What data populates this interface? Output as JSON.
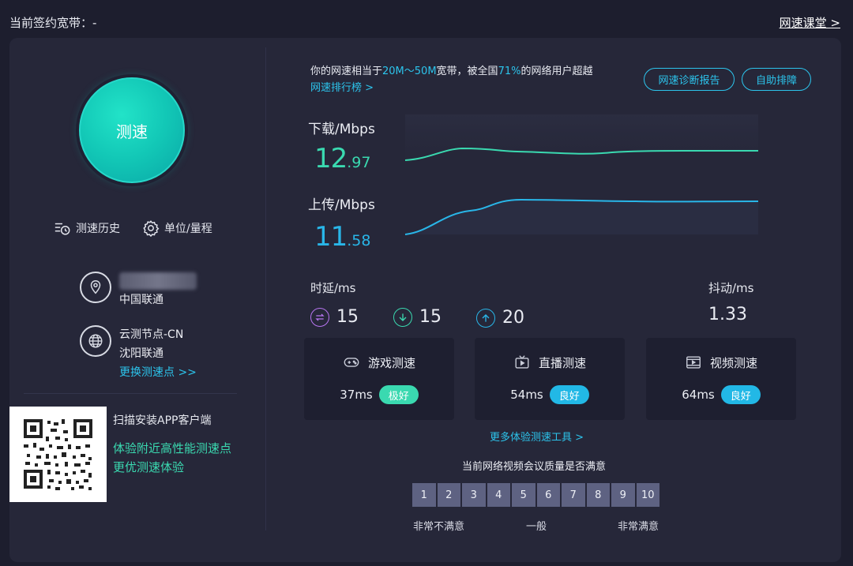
{
  "header": {
    "contract_label": "当前签约宽带：-",
    "class_link": "网速课堂 >"
  },
  "left": {
    "speed_button": "测速",
    "history_label": "测速历史",
    "unit_label": "单位/量程",
    "isp": "中国联通",
    "node_name": "云测节点-CN",
    "node_isp": "沈阳联通",
    "change_node": "更换测速点 >>",
    "qr_title": "扫描安装APP客户端",
    "qr_line1": "体验附近高性能测速点",
    "qr_line2": "更优测速体验"
  },
  "summary": {
    "prefix": "你的网速相当于",
    "range": "20M～50M",
    "mid": "宽带，被全国",
    "percent": "71%",
    "suffix": "的网络用户超越",
    "rank_link": "网速排行榜 >"
  },
  "buttons": {
    "diagnosis": "网速诊断报告",
    "self_fix": "自助排障"
  },
  "download": {
    "label": "下载/Mbps",
    "int": "12",
    "dec": ".97",
    "color": "#3ad9b0"
  },
  "upload": {
    "label": "上传/Mbps",
    "int": "11",
    "dec": ".58",
    "color": "#29b6e8"
  },
  "latency": {
    "title": "时延/ms",
    "ping": "15",
    "down": "15",
    "up": "20"
  },
  "jitter": {
    "title": "抖动/ms",
    "value": "1.33"
  },
  "cards": [
    {
      "title": "游戏测速",
      "ms": "37ms",
      "badge": "极好",
      "badge_color": "#3ad9b0",
      "icon": "gamepad-icon"
    },
    {
      "title": "直播测速",
      "ms": "54ms",
      "badge": "良好",
      "badge_color": "#22b8e6",
      "icon": "live-tv-icon"
    },
    {
      "title": "视频测速",
      "ms": "64ms",
      "badge": "良好",
      "badge_color": "#22b8e6",
      "icon": "video-film-icon"
    }
  ],
  "more_tools": "更多体验测速工具 >",
  "survey": {
    "question": "当前网络视频会议质量是否满意",
    "scale": [
      "1",
      "2",
      "3",
      "4",
      "5",
      "6",
      "7",
      "8",
      "9",
      "10"
    ],
    "low": "非常不满意",
    "mid": "一般",
    "high": "非常满意"
  },
  "colors": {
    "accent_cyan": "#2cc4ec",
    "accent_green": "#3ad9b0",
    "panel_bg": "#262739",
    "page_bg": "#1d1e2e"
  }
}
